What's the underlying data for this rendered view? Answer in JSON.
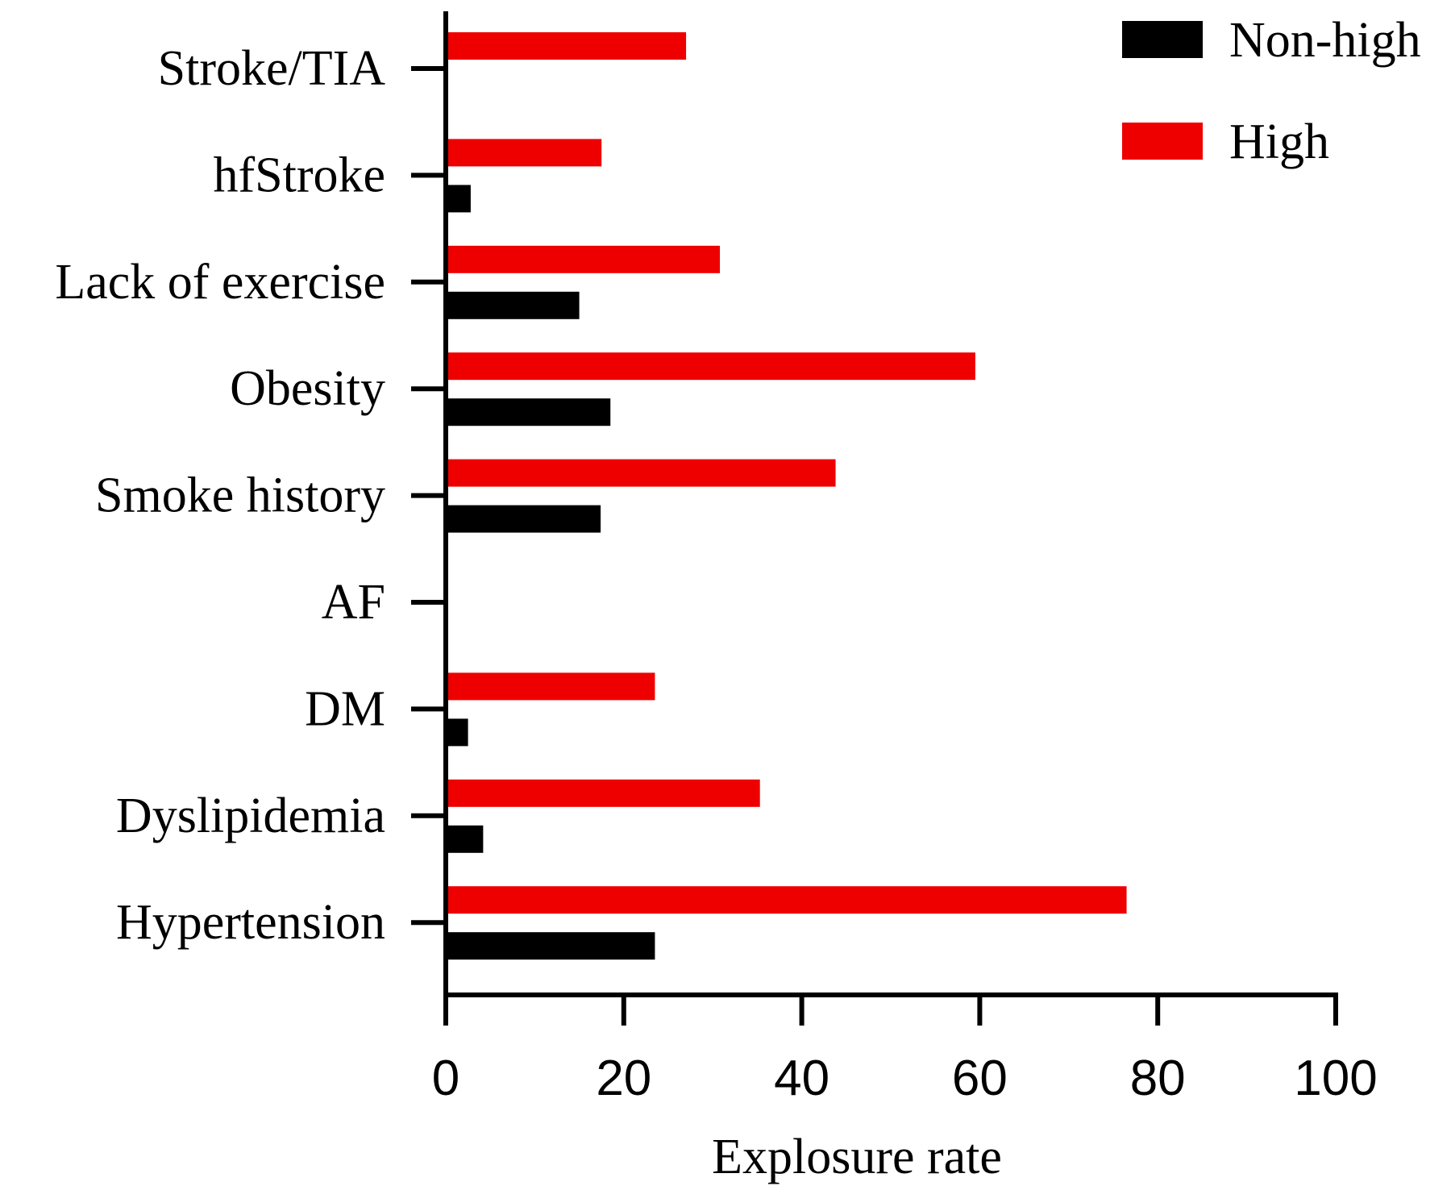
{
  "chart_data": {
    "type": "bar",
    "orientation": "horizontal",
    "categories": [
      "Stroke/TIA",
      "hfStroke",
      "Lack of exercise",
      "Obesity",
      "Smoke history",
      "AF",
      "DM",
      "Dyslipidemia",
      "Hypertension"
    ],
    "series": [
      {
        "name": "Non-high",
        "color": "#000000",
        "values": [
          0,
          2.8,
          15,
          18.5,
          17.4,
          0,
          2.5,
          4.2,
          23.5
        ]
      },
      {
        "name": "High",
        "color": "#ee0000",
        "values": [
          27,
          17.5,
          30.8,
          59.5,
          43.8,
          0,
          23.5,
          35.3,
          76.5
        ]
      }
    ],
    "xlabel": "Explosure rate",
    "ylabel": "",
    "xlim": [
      0,
      100
    ],
    "xticks": [
      "0",
      "20",
      "40",
      "60",
      "80",
      "100"
    ],
    "grid": false,
    "legend_position": "top-right"
  }
}
